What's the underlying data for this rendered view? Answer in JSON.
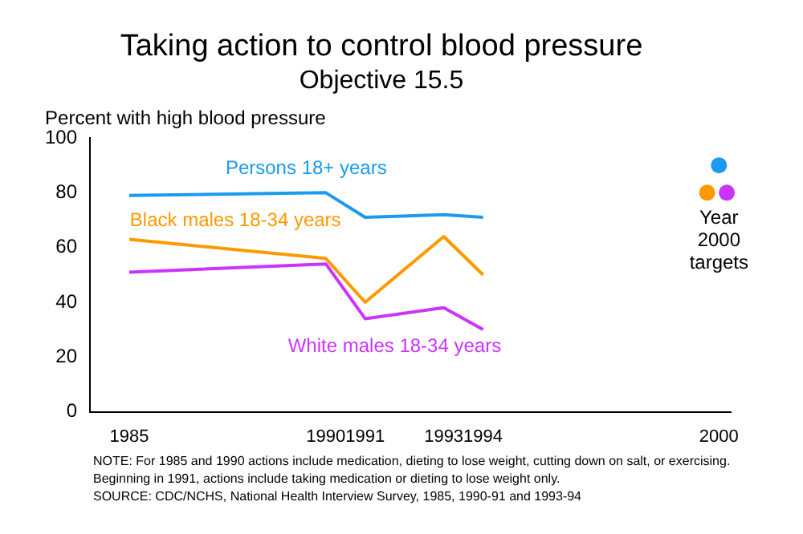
{
  "chart_data": {
    "type": "line",
    "title": "Taking action to control blood pressure",
    "subtitle": "Objective 15.5",
    "ylabel": "Percent with high blood pressure",
    "x": [
      1985,
      1990,
      1991,
      1993,
      1994
    ],
    "series": [
      {
        "name": "Persons 18+ years",
        "color": "#1a9af0",
        "values": [
          79,
          80,
          71,
          72,
          71
        ]
      },
      {
        "name": "Black males 18-34 years",
        "color": "#ff9900",
        "values": [
          63,
          56,
          40,
          64,
          50
        ]
      },
      {
        "name": "White males 18-34 years",
        "color": "#cc33ff",
        "values": [
          51,
          54,
          34,
          38,
          30
        ]
      },
      {
        "type": "scatter",
        "marker": "circle",
        "color": "#1a9af0",
        "x": [
          2000
        ],
        "values": [
          90
        ]
      },
      {
        "type": "scatter",
        "marker": "circle",
        "color": "#ff9900",
        "x": [
          1999.7
        ],
        "values": [
          80
        ]
      },
      {
        "type": "scatter",
        "marker": "circle",
        "color": "#cc33ff",
        "x": [
          2000.2
        ],
        "values": [
          80
        ]
      }
    ],
    "xlim": [
      1984,
      2000.3
    ],
    "xticks": [
      1985,
      1990,
      1991,
      1993,
      1994,
      2000
    ],
    "ylim": [
      0,
      100
    ],
    "yticks": [
      0,
      20,
      40,
      60,
      80,
      100
    ],
    "grid": false,
    "legend": false,
    "marker": "none",
    "line_style": "solid",
    "annotations": [
      {
        "text": "Year\n2000\ntargets",
        "x": 2000,
        "y": 80
      },
      "NOTE:  For 1985 and 1990 actions include medication, dieting to lose weight, cutting down on salt, or exercising.\nBeginning in 1991, actions include taking medication or dieting to lose weight only.\nSOURCE: CDC/NCHS, National Health Interview Survey, 1985, 1990-91 and 1993-94"
    ]
  }
}
